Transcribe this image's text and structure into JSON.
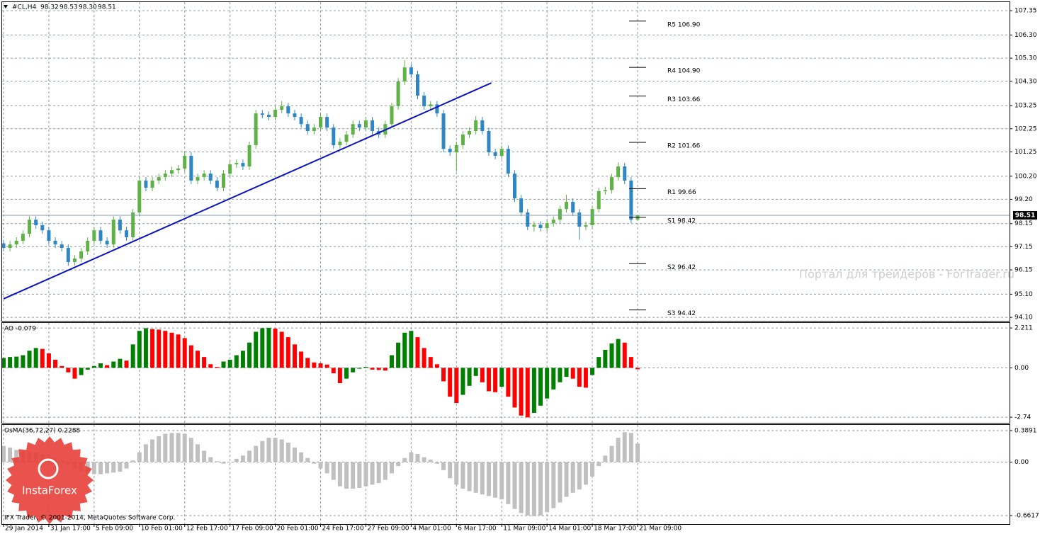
{
  "chart_data": [
    {
      "type": "candlestick",
      "title": "#CL,H4",
      "ohlc_labels": [
        "98.32",
        "98.53",
        "98.30",
        "98.51"
      ],
      "categories": [
        "29 Jan 2014",
        null,
        null,
        null,
        null,
        null,
        null,
        "31 Jan 17:00",
        null,
        null,
        null,
        null,
        null,
        null,
        "5 Feb 09:00",
        null,
        null,
        null,
        null,
        null,
        null,
        "10 Feb 01:00",
        null,
        null,
        null,
        null,
        null,
        null,
        "12 Feb 17:00",
        null,
        null,
        null,
        null,
        null,
        null,
        "17 Feb 09:00",
        null,
        null,
        null,
        null,
        null,
        null,
        "20 Feb 01:00",
        null,
        null,
        null,
        null,
        null,
        null,
        "24 Feb 17:00",
        null,
        null,
        null,
        null,
        null,
        null,
        "27 Feb 09:00",
        null,
        null,
        null,
        null,
        null,
        null,
        "4 Mar 01:00",
        null,
        null,
        null,
        null,
        null,
        null,
        "6 Mar 17:00",
        null,
        null,
        null,
        null,
        null,
        null,
        "11 Mar 09:00",
        null,
        null,
        null,
        null,
        null,
        null,
        "14 Mar 01:00",
        null,
        null,
        null,
        null,
        null,
        null,
        "18 Mar 17:00",
        null,
        null,
        null,
        null,
        null,
        null,
        "21 Mar 09:00"
      ],
      "open": [
        97.3,
        97.1,
        97.25,
        97.41,
        97.71,
        98.32,
        98.08,
        97.86,
        97.41,
        97.25,
        97.1,
        96.49,
        96.64,
        96.95,
        97.41,
        97.86,
        97.41,
        97.25,
        98.32,
        97.86,
        97.56,
        98.63,
        100.01,
        99.7,
        100.01,
        100.16,
        100.31,
        100.46,
        100.53,
        101.08,
        100.01,
        100.16,
        100.31,
        100.01,
        99.7,
        100.31,
        100.71,
        100.77,
        100.62,
        101.54,
        102.91,
        102.85,
        102.76,
        103.07,
        103.22,
        102.91,
        102.76,
        102.45,
        102.15,
        102.3,
        102.76,
        102.3,
        101.54,
        101.69,
        102.0,
        102.45,
        102.3,
        102.61,
        102.15,
        102.0,
        102.45,
        103.22,
        104.29,
        104.9,
        104.6,
        103.68,
        103.22,
        103.3,
        102.91,
        101.38,
        101.23,
        101.54,
        102.0,
        102.15,
        102.61,
        102.15,
        101.23,
        101.08,
        101.38,
        100.31,
        99.24,
        98.63,
        98.02,
        98.1,
        97.96,
        98.17,
        98.32,
        98.78,
        99.09,
        98.63,
        98.02,
        98.08,
        98.78,
        99.55,
        99.6,
        100.16,
        100.62,
        100.01,
        98.32
      ],
      "high": [
        97.45,
        97.4,
        97.56,
        97.86,
        98.47,
        98.47,
        98.23,
        98.01,
        97.56,
        97.4,
        97.25,
        96.79,
        97.1,
        97.56,
        98.01,
        98.01,
        97.56,
        98.47,
        98.47,
        98.01,
        98.78,
        100.16,
        100.16,
        100.16,
        100.31,
        100.46,
        100.61,
        100.68,
        101.3,
        101.23,
        100.31,
        100.46,
        100.46,
        100.16,
        100.46,
        100.86,
        100.92,
        100.92,
        101.69,
        103.06,
        103.06,
        103.0,
        103.22,
        103.45,
        103.37,
        103.06,
        102.91,
        102.6,
        102.45,
        102.91,
        102.91,
        102.45,
        101.84,
        102.15,
        102.6,
        102.6,
        102.76,
        102.76,
        102.3,
        102.6,
        103.37,
        104.44,
        105.21,
        105.05,
        104.75,
        103.83,
        103.45,
        103.45,
        103.06,
        101.53,
        101.69,
        102.15,
        102.3,
        102.8,
        102.76,
        102.3,
        101.38,
        101.53,
        101.53,
        100.46,
        99.39,
        98.78,
        98.25,
        98.25,
        98.32,
        98.47,
        98.93,
        99.4,
        99.24,
        98.78,
        98.23,
        98.93,
        99.7,
        99.75,
        100.31,
        100.8,
        100.77,
        100.16,
        98.53
      ],
      "low": [
        96.95,
        96.95,
        97.1,
        97.26,
        97.56,
        97.93,
        97.71,
        97.26,
        97.1,
        96.95,
        96.33,
        96.34,
        96.49,
        96.8,
        97.26,
        97.26,
        97.1,
        97.1,
        97.71,
        97.41,
        97.41,
        98.48,
        99.55,
        99.55,
        99.86,
        100.01,
        100.16,
        100.31,
        100.38,
        99.86,
        99.86,
        100.01,
        99.86,
        99.55,
        99.55,
        100.16,
        100.56,
        100.47,
        100.47,
        101.39,
        102.7,
        102.61,
        102.61,
        102.92,
        102.76,
        102.61,
        102.3,
        102.0,
        102.0,
        102.15,
        102.15,
        101.39,
        101.39,
        101.54,
        101.85,
        102.15,
        102.15,
        102.0,
        101.85,
        101.85,
        102.3,
        103.07,
        104.14,
        104.45,
        103.53,
        103.07,
        103.07,
        102.76,
        101.23,
        101.08,
        100.4,
        101.39,
        101.85,
        102.0,
        102.0,
        101.08,
        100.93,
        100.93,
        100.16,
        99.09,
        98.48,
        97.87,
        97.8,
        97.81,
        97.81,
        98.02,
        98.17,
        98.63,
        98.48,
        97.45,
        97.87,
        97.93,
        98.63,
        99.4,
        99.45,
        100.01,
        99.86,
        98.17,
        98.3
      ],
      "close": [
        97.1,
        97.25,
        97.41,
        97.71,
        98.32,
        98.08,
        97.86,
        97.41,
        97.25,
        97.1,
        96.49,
        96.64,
        96.95,
        97.41,
        97.86,
        97.41,
        97.25,
        98.32,
        97.86,
        97.56,
        98.63,
        100.01,
        99.7,
        100.01,
        100.16,
        100.31,
        100.46,
        100.53,
        101.08,
        100.01,
        100.16,
        100.31,
        100.01,
        99.7,
        100.31,
        100.71,
        100.77,
        100.62,
        101.54,
        102.91,
        102.85,
        102.76,
        103.07,
        103.22,
        102.91,
        102.76,
        102.45,
        102.15,
        102.3,
        102.76,
        102.3,
        101.54,
        101.69,
        102.0,
        102.45,
        102.3,
        102.61,
        102.15,
        102.0,
        102.45,
        103.22,
        104.29,
        104.9,
        104.6,
        103.68,
        103.22,
        103.3,
        102.91,
        101.38,
        101.23,
        101.54,
        102.0,
        102.15,
        102.61,
        102.15,
        101.23,
        101.08,
        101.38,
        100.31,
        99.24,
        98.63,
        98.02,
        98.1,
        97.96,
        98.17,
        98.32,
        98.78,
        99.09,
        98.63,
        98.02,
        98.08,
        98.78,
        99.55,
        99.6,
        100.16,
        100.62,
        100.01,
        98.32,
        98.51
      ],
      "up_color": "#5fb246",
      "down_color": "#2f86c4",
      "ylim": [
        93.95,
        107.72
      ],
      "yticks": [
        107.35,
        {
          "value": 106.3,
          "label": "106.30"
        },
        {
          "value": 105.3,
          "label": "105.30"
        },
        {
          "value": 104.3,
          "label": "104.30"
        },
        103.25,
        102.25,
        101.25,
        {
          "value": 100.2,
          "label": "100.20"
        },
        {
          "value": 99.2,
          "label": "99.20"
        },
        98.15,
        97.15,
        96.15,
        {
          "value": 95.1,
          "label": "95.10"
        },
        {
          "value": 94.1,
          "label": "94.10"
        }
      ],
      "grid": true,
      "price_line_color": "#7f9bbd",
      "trendline": {
        "x": [
          0,
          75.4
        ],
        "y": [
          94.9,
          104.23
        ],
        "color": "#0a14c0"
      },
      "pivots": [
        {
          "label": "R5 106.90",
          "value": 106.9
        },
        {
          "label": "R4 104.90",
          "value": 104.9
        },
        {
          "label": "R3 103.66",
          "value": 103.66
        },
        {
          "label": "R2 101.66",
          "value": 101.66
        },
        {
          "label": "R1 99.66",
          "value": 99.66
        },
        {
          "label": "S1 98.42",
          "value": 98.42
        },
        {
          "label": "S2 96.42",
          "value": 96.42
        },
        {
          "label": "S3 94.42",
          "value": 94.42
        }
      ]
    },
    {
      "type": "bar",
      "title": "AO -0.079",
      "values": [
        0.55,
        0.6,
        0.62,
        0.7,
        0.95,
        1.1,
        1.05,
        0.8,
        0.45,
        0.1,
        -0.25,
        -0.6,
        -0.4,
        -0.1,
        0.1,
        0.25,
        0.15,
        0.35,
        0.5,
        0.4,
        1.3,
        2.05,
        2.2,
        2.15,
        2.12,
        2.05,
        1.95,
        1.85,
        1.65,
        1.25,
        0.95,
        0.6,
        0.2,
        0.05,
        0.35,
        0.45,
        0.7,
        0.95,
        1.4,
        2.0,
        2.2,
        2.22,
        2.18,
        2.0,
        1.7,
        1.3,
        0.9,
        0.55,
        0.3,
        0.25,
        0.18,
        -0.3,
        -0.85,
        -0.6,
        -0.25,
        -0.05,
        0.05,
        -0.1,
        -0.12,
        -0.15,
        0.7,
        1.4,
        1.95,
        2.05,
        1.7,
        1.1,
        0.6,
        0.2,
        -0.75,
        -1.6,
        -1.95,
        -1.5,
        -1.0,
        -0.45,
        -0.8,
        -1.3,
        -1.35,
        -1.05,
        -1.6,
        -2.2,
        -2.65,
        -2.75,
        -2.5,
        -2.1,
        -1.7,
        -1.2,
        -0.8,
        -0.5,
        -0.6,
        -1.05,
        -1.1,
        -0.4,
        0.6,
        1.0,
        1.35,
        1.6,
        1.4,
        0.6,
        -0.079
      ],
      "up_color": "#008000",
      "down_color": "#ff0000",
      "ylim": [
        -3.05,
        2.49
      ],
      "yticks": [
        2.211,
        {
          "value": 0,
          "label": "0.00"
        },
        -2.74
      ],
      "grid": true
    },
    {
      "type": "bar",
      "title": "OsMA(36,72,27) 0.2288",
      "values": [
        0.2,
        0.18,
        0.15,
        0.14,
        0.13,
        0.12,
        0.1,
        0.08,
        0.05,
        0.02,
        -0.03,
        -0.08,
        -0.12,
        -0.14,
        -0.15,
        -0.15,
        -0.14,
        -0.13,
        -0.12,
        -0.08,
        0.02,
        0.12,
        0.22,
        0.28,
        0.32,
        0.35,
        0.36,
        0.36,
        0.35,
        0.3,
        0.22,
        0.14,
        0.06,
        0.01,
        -0.02,
        0.0,
        0.04,
        0.08,
        0.14,
        0.2,
        0.26,
        0.3,
        0.3,
        0.28,
        0.24,
        0.18,
        0.12,
        0.05,
        -0.02,
        -0.08,
        -0.14,
        -0.22,
        -0.3,
        -0.33,
        -0.33,
        -0.32,
        -0.3,
        -0.28,
        -0.26,
        -0.22,
        -0.14,
        -0.05,
        0.05,
        0.12,
        0.1,
        0.06,
        0.03,
        -0.02,
        -0.1,
        -0.2,
        -0.28,
        -0.33,
        -0.36,
        -0.38,
        -0.4,
        -0.42,
        -0.44,
        -0.46,
        -0.52,
        -0.58,
        -0.63,
        -0.66,
        -0.67,
        -0.66,
        -0.62,
        -0.57,
        -0.5,
        -0.43,
        -0.38,
        -0.34,
        -0.28,
        -0.18,
        -0.05,
        0.08,
        0.2,
        0.3,
        0.37,
        0.36,
        0.2288
      ],
      "color": "#c0c0c0",
      "ylim": [
        -0.767,
        0.459
      ],
      "yticks": [
        0.3891,
        {
          "value": 0,
          "label": "0.00"
        },
        -0.6617
      ],
      "grid": true
    }
  ],
  "watermark": "Портал для трейдеров - ForTrader.ru",
  "copyright": "IFX Trader, © 2001-2014, MetaQuotes Software Corp.",
  "logo": "InstaForex"
}
